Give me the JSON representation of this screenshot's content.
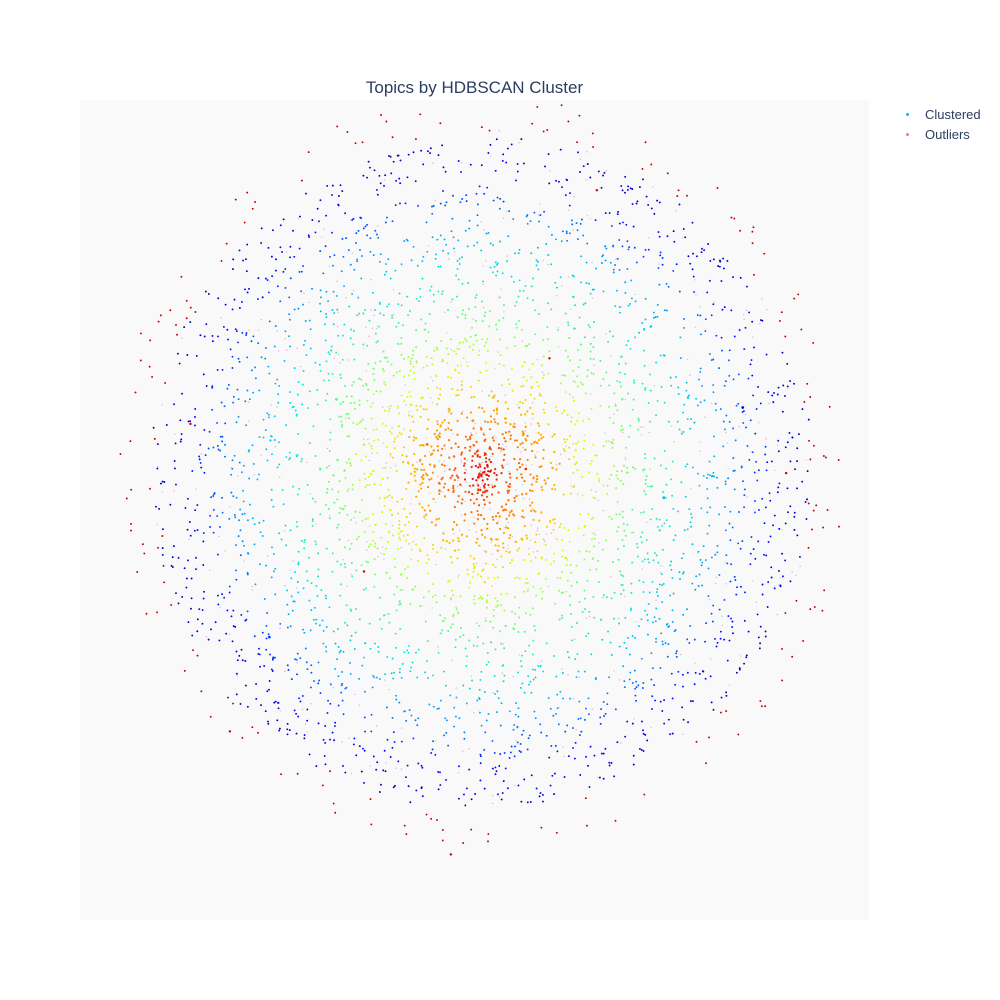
{
  "chart_data": {
    "type": "scatter",
    "title": "Topics by HDBSCAN Cluster",
    "xlabel": "",
    "ylabel": "",
    "grid": false,
    "legend_position": "top-right",
    "colorscale": "jet",
    "xlim": [
      -10,
      10
    ],
    "ylim": [
      -10,
      10
    ],
    "series": [
      {
        "name": "Clustered",
        "legend_color": "#17becf",
        "point_count": 3300,
        "center": [
          0.2,
          0.9
        ],
        "max_radius": 8.3,
        "color_mode": "radial-jet",
        "note_color": "red at center, blue at edge"
      },
      {
        "name": "Outliers",
        "legend_color": "#e377c2",
        "point_count": 700,
        "center": [
          0.2,
          0.9
        ],
        "max_radius": 8.8,
        "color_mode": "mixed-gray-red"
      }
    ],
    "sample_points": {
      "clustered": [
        {
          "x": 0.1,
          "y": 0.8,
          "c": 0.98
        },
        {
          "x": 1.3,
          "y": 1.0,
          "c": 0.95
        },
        {
          "x": -1.2,
          "y": 1.6,
          "c": 0.9
        },
        {
          "x": 2.8,
          "y": -0.4,
          "c": 0.7
        },
        {
          "x": -3.5,
          "y": 2.7,
          "c": 0.55
        },
        {
          "x": 4.8,
          "y": 0.3,
          "c": 0.35
        },
        {
          "x": -5.2,
          "y": -3.1,
          "c": 0.2
        },
        {
          "x": 6.8,
          "y": 2.5,
          "c": 0.08
        }
      ],
      "outliers": [
        {
          "x": -7.2,
          "y": 2.1
        },
        {
          "x": 7.9,
          "y": 0.9
        },
        {
          "x": -0.6,
          "y": -8.4
        },
        {
          "x": 3.1,
          "y": 7.8
        },
        {
          "x": -6.2,
          "y": -5.4
        },
        {
          "x": 1.9,
          "y": 3.7
        },
        {
          "x": -2.8,
          "y": -1.5
        }
      ]
    }
  }
}
